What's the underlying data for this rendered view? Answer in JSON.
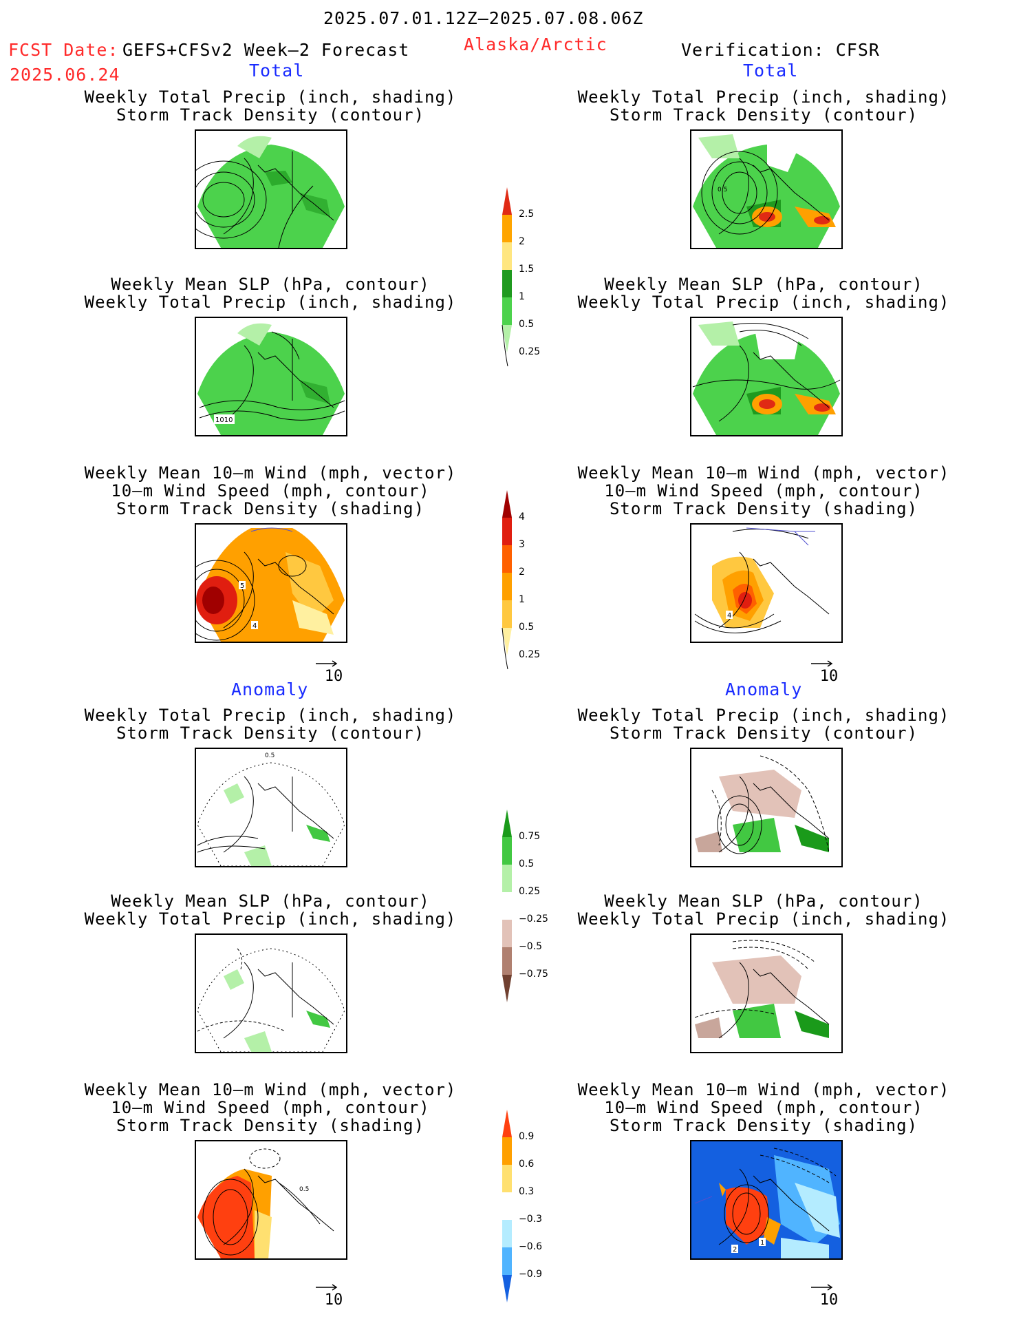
{
  "header": {
    "period": "2025.07.01.12Z–2025.07.08.06Z",
    "fcst_label": "FCST Date:",
    "fcst_model": "GEFS+CFSv2 Week–2 Forecast",
    "fcst_date": "2025.06.24",
    "region": "Alaska/Arctic",
    "verification": "Verification: CFSR"
  },
  "sections": {
    "total": "Total",
    "anomaly": "Anomaly"
  },
  "titles": {
    "precip_storm": [
      "Weekly Total Precip (inch, shading)",
      "Storm Track Density (contour)"
    ],
    "slp_precip": [
      "Weekly Mean SLP (hPa, contour)",
      "Weekly Total Precip (inch, shading)"
    ],
    "wind_storm": [
      "Weekly Mean 10–m Wind (mph, vector)",
      "10–m Wind Speed (mph, contour)",
      "Storm Track Density (shading)"
    ]
  },
  "vector_ref": "10",
  "map_labels": {
    "slp_contour": "1010",
    "storm_contour_obs": "0.5",
    "wind_contour_a": "5",
    "wind_contour_b": "4",
    "wind_contour_obs": "4",
    "anom_wind_obs_a": "2",
    "anom_wind_obs_b": "1",
    "anom_wind_fcst": "0.5",
    "anom_storm_fcst": "0.5"
  },
  "colorbars": {
    "precip_total": {
      "labels": [
        "2.5",
        "2",
        "1.5",
        "1",
        "0.5",
        "0.25"
      ],
      "colors": [
        "#e02a14",
        "#ffa500",
        "#ffe680",
        "#1f9a1f",
        "#4cd24c",
        "#b4f0a8"
      ]
    },
    "storm_total": {
      "labels": [
        "4",
        "3",
        "2",
        "1",
        "0.5",
        "0.25"
      ],
      "colors": [
        "#a00000",
        "#e01e10",
        "#ff6000",
        "#ffa000",
        "#ffc840",
        "#fff0a0"
      ]
    },
    "precip_anom": {
      "labels": [
        "0.75",
        "0.5",
        "0.25",
        "−0.25",
        "−0.5",
        "−0.75"
      ],
      "colors": [
        "#1a9a1a",
        "#42c842",
        "#b4f0a8",
        "#ffffff",
        "#e2c2b8",
        "#b08070",
        "#704030"
      ]
    },
    "storm_anom": {
      "labels": [
        "0.9",
        "0.6",
        "0.3",
        "−0.3",
        "−0.6",
        "−0.9"
      ],
      "colors": [
        "#ff4010",
        "#ffa000",
        "#ffe070",
        "#ffffff",
        "#b4ecff",
        "#50b4ff",
        "#1460e0"
      ]
    }
  }
}
